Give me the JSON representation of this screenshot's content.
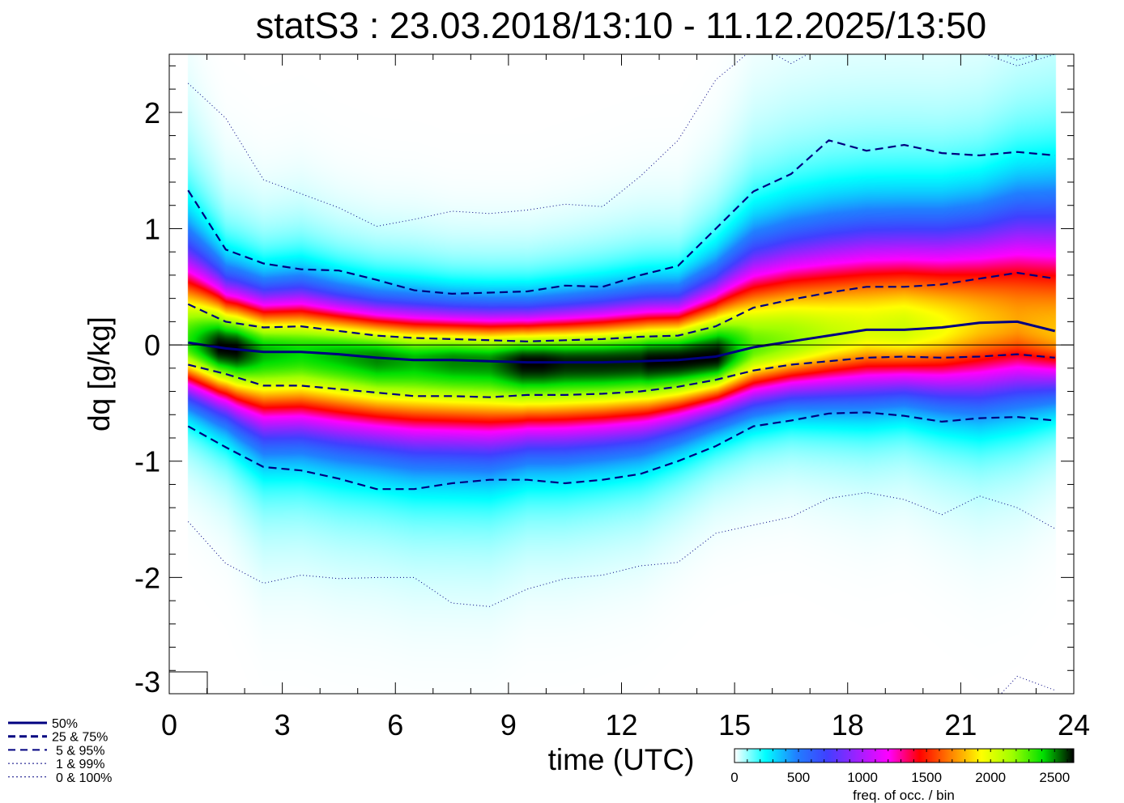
{
  "chart_data": {
    "type": "heatmap",
    "title": "statS3 : 23.03.2018/13:10 - 11.12.2025/13:50",
    "xlabel": "time (UTC)",
    "ylabel": "dq [g/kg]",
    "xlim": [
      0,
      24
    ],
    "ylim": [
      -3,
      2.5
    ],
    "xticks": [
      0,
      3,
      6,
      9,
      12,
      15,
      18,
      21,
      24
    ],
    "xtick_labels": [
      "0",
      "3",
      "6",
      "9",
      "12",
      "15",
      "18",
      "21",
      "24"
    ],
    "yticks": [
      -3,
      -2,
      -1,
      0,
      1,
      2
    ],
    "ytick_labels": [
      "-3",
      "-2",
      "-1",
      "0",
      "1",
      "2"
    ],
    "x": [
      0.5,
      1.5,
      2.5,
      3.5,
      4.5,
      5.5,
      6.5,
      7.5,
      8.5,
      9.5,
      10.5,
      11.5,
      12.5,
      13.5,
      14.5,
      15.5,
      16.5,
      17.5,
      18.5,
      19.5,
      20.5,
      21.5,
      22.5,
      23.5
    ],
    "series": [
      {
        "name": "50%",
        "style": "solid",
        "values": [
          0.02,
          -0.03,
          -0.06,
          -0.06,
          -0.08,
          -0.11,
          -0.13,
          -0.13,
          -0.14,
          -0.15,
          -0.15,
          -0.15,
          -0.14,
          -0.13,
          -0.1,
          -0.02,
          0.03,
          0.08,
          0.13,
          0.13,
          0.15,
          0.19,
          0.2,
          0.12
        ]
      },
      {
        "name": "25%",
        "style": "dashed",
        "values": [
          -0.17,
          -0.25,
          -0.35,
          -0.35,
          -0.38,
          -0.41,
          -0.44,
          -0.44,
          -0.45,
          -0.43,
          -0.43,
          -0.42,
          -0.4,
          -0.36,
          -0.3,
          -0.22,
          -0.17,
          -0.14,
          -0.11,
          -0.1,
          -0.11,
          -0.1,
          -0.08,
          -0.11
        ]
      },
      {
        "name": "75%",
        "style": "dashed",
        "values": [
          0.35,
          0.2,
          0.15,
          0.16,
          0.12,
          0.08,
          0.06,
          0.05,
          0.04,
          0.03,
          0.04,
          0.05,
          0.07,
          0.08,
          0.16,
          0.32,
          0.39,
          0.45,
          0.5,
          0.5,
          0.52,
          0.57,
          0.62,
          0.57
        ]
      },
      {
        "name": "5%",
        "style": "dashed",
        "values": [
          -0.7,
          -0.88,
          -1.05,
          -1.08,
          -1.15,
          -1.24,
          -1.24,
          -1.19,
          -1.16,
          -1.16,
          -1.19,
          -1.16,
          -1.11,
          -1.0,
          -0.87,
          -0.7,
          -0.65,
          -0.59,
          -0.58,
          -0.61,
          -0.66,
          -0.63,
          -0.62,
          -0.65
        ]
      },
      {
        "name": "95%",
        "style": "dashed",
        "values": [
          1.33,
          0.82,
          0.7,
          0.65,
          0.64,
          0.56,
          0.47,
          0.44,
          0.45,
          0.46,
          0.51,
          0.5,
          0.6,
          0.68,
          1.0,
          1.32,
          1.47,
          1.76,
          1.67,
          1.72,
          1.65,
          1.63,
          1.66,
          1.63
        ]
      },
      {
        "name": "1%",
        "style": "dotted",
        "values": [
          -1.52,
          -1.88,
          -2.05,
          -1.98,
          -2.01,
          -2.0,
          -2.0,
          -2.22,
          -2.25,
          -2.1,
          -2.01,
          -1.98,
          -1.9,
          -1.87,
          -1.62,
          -1.55,
          -1.48,
          -1.32,
          -1.27,
          -1.33,
          -1.46,
          -1.3,
          -1.4,
          -1.58
        ]
      },
      {
        "name": "99%",
        "style": "dotted",
        "values": [
          2.25,
          1.95,
          1.42,
          1.3,
          1.18,
          1.02,
          1.08,
          1.15,
          1.13,
          1.16,
          1.21,
          1.19,
          1.45,
          1.76,
          2.28,
          2.55,
          2.6,
          2.55,
          2.7,
          2.7,
          2.7,
          2.6,
          2.45,
          2.55
        ]
      },
      {
        "name": "0%",
        "style": "dotted",
        "values": [
          null,
          null,
          null,
          null,
          null,
          null,
          null,
          null,
          null,
          null,
          null,
          null,
          null,
          null,
          null,
          null,
          null,
          null,
          null,
          null,
          null,
          -3.2,
          -2.85,
          -2.97
        ]
      },
      {
        "name": "100%",
        "style": "dotted",
        "values": [
          null,
          null,
          null,
          null,
          null,
          null,
          null,
          null,
          null,
          null,
          null,
          null,
          null,
          null,
          2.9,
          2.6,
          2.42,
          2.6,
          null,
          null,
          null,
          2.52,
          2.4,
          2.5
        ]
      }
    ],
    "legend": [
      {
        "label": "50%",
        "style": "solid"
      },
      {
        "label": "25 &  75%",
        "style": "dashed-thick"
      },
      {
        "label": "5 &  95%",
        "style": "dashed"
      },
      {
        "label": "1 &  99%",
        "style": "dotted"
      },
      {
        "label": "0 & 100%",
        "style": "dotted"
      }
    ],
    "legend_position": "bottom-left",
    "colorbar": {
      "label": "freq. of occ. / bin",
      "range": [
        0,
        2650
      ],
      "ticks": [
        0,
        500,
        1000,
        1500,
        2000,
        2500
      ],
      "tick_labels": [
        "0",
        "500",
        "1000",
        "1500",
        "2000",
        "2500"
      ],
      "colors": [
        "#ffffff",
        "#00ffff",
        "#2080ff",
        "#4040ff",
        "#a020ff",
        "#ff00ff",
        "#ff0000",
        "#ff8000",
        "#ffff00",
        "#a0ff00",
        "#00e000",
        "#000000"
      ]
    },
    "line_color": "#000080",
    "grid": false
  }
}
